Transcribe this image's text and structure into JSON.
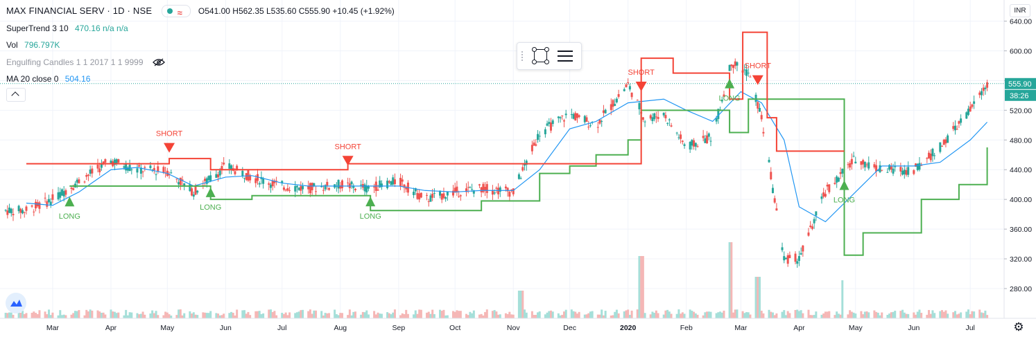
{
  "legend": {
    "title": "MAX FINANCIAL SERV · 1D · NSE",
    "ohlc": "O541.00  H562.35  L535.60  C555.90  +10.45 (+1.92%)",
    "indicators": [
      {
        "name": "SuperTrend 3 10",
        "value": "470.16  n/a  n/a",
        "color": "#26a69a"
      },
      {
        "name": "Vol",
        "value": "796.797K",
        "color": "#26a69a"
      },
      {
        "name": "Engulfing Candles 1 1 2017 1 1 9999",
        "value": "",
        "color": "#9598a1"
      },
      {
        "name": "MA 20 close 0",
        "value": "504.16",
        "color": "#2196f3"
      }
    ]
  },
  "price_scale": {
    "currency": "INR",
    "last_price_label": "555.90",
    "countdown_label": "38:26"
  },
  "colors": {
    "up": "#26a69a",
    "down": "#ef5350",
    "up_vol": "#a5dfd9",
    "down_vol": "#f5b7b6",
    "st_long": "#4caf50",
    "st_short": "#f44336",
    "ma": "#2196f3",
    "grid": "#f0f3fa",
    "text": "#131722"
  },
  "chart_data": {
    "type": "line",
    "title": "MAX FINANCIAL SERV · 1D · NSE",
    "ylim": [
      240,
      650
    ],
    "y_ticks": [
      640,
      600,
      560,
      520,
      480,
      440,
      400,
      360,
      320,
      280
    ],
    "x_ticks": [
      "Mar",
      "Apr",
      "May",
      "Jun",
      "Jul",
      "Aug",
      "Sep",
      "Oct",
      "Nov",
      "Dec",
      "2020",
      "Feb",
      "Mar",
      "Apr",
      "May",
      "Jun",
      "Jul"
    ],
    "grid": true,
    "series": [
      {
        "name": "Close",
        "x": [
          "2019-02-15",
          "2019-03-01",
          "2019-03-15",
          "2019-04-01",
          "2019-04-15",
          "2019-05-01",
          "2019-05-15",
          "2019-06-01",
          "2019-06-15",
          "2019-07-01",
          "2019-07-15",
          "2019-08-01",
          "2019-08-15",
          "2019-09-01",
          "2019-09-15",
          "2019-10-01",
          "2019-10-15",
          "2019-11-01",
          "2019-11-15",
          "2019-12-01",
          "2019-12-15",
          "2020-01-01",
          "2020-01-10",
          "2020-01-20",
          "2020-02-01",
          "2020-02-15",
          "2020-02-25",
          "2020-03-05",
          "2020-03-12",
          "2020-03-24",
          "2020-04-01",
          "2020-04-15",
          "2020-05-01",
          "2020-05-15",
          "2020-06-01",
          "2020-06-15",
          "2020-07-01",
          "2020-07-10"
        ],
        "values": [
          385,
          400,
          425,
          452,
          440,
          438,
          410,
          445,
          430,
          418,
          415,
          420,
          415,
          425,
          400,
          410,
          415,
          410,
          490,
          515,
          500,
          555,
          508,
          515,
          470,
          485,
          585,
          570,
          510,
          320,
          320,
          410,
          455,
          440,
          440,
          470,
          520,
          556
        ]
      },
      {
        "name": "MA 20 close 0",
        "x": [
          "2019-02-15",
          "2019-03-01",
          "2019-03-15",
          "2019-04-01",
          "2019-04-15",
          "2019-05-01",
          "2019-05-15",
          "2019-06-01",
          "2019-06-15",
          "2019-07-01",
          "2019-07-15",
          "2019-08-01",
          "2019-08-15",
          "2019-09-01",
          "2019-09-15",
          "2019-10-01",
          "2019-10-15",
          "2019-11-01",
          "2019-11-15",
          "2019-12-01",
          "2019-12-15",
          "2020-01-01",
          "2020-01-20",
          "2020-02-01",
          "2020-02-15",
          "2020-03-01",
          "2020-03-12",
          "2020-03-24",
          "2020-04-01",
          "2020-04-15",
          "2020-05-01",
          "2020-05-15",
          "2020-06-01",
          "2020-06-15",
          "2020-07-01",
          "2020-07-10"
        ],
        "values": [
          395,
          392,
          410,
          440,
          443,
          435,
          418,
          430,
          432,
          422,
          418,
          418,
          418,
          418,
          412,
          410,
          412,
          412,
          440,
          495,
          505,
          530,
          535,
          520,
          505,
          545,
          530,
          480,
          390,
          370,
          410,
          445,
          445,
          450,
          480,
          504
        ]
      },
      {
        "name": "SuperTrend long",
        "x": [
          "2019-03-10",
          "2019-05-09",
          "2019-05-24",
          "2019-06-15",
          "2019-08-17",
          "2019-10-15",
          "2019-11-01",
          "2019-11-15",
          "2019-12-01",
          "2019-12-15",
          "2020-01-01",
          "2020-01-08",
          "2020-02-24",
          "2020-03-05",
          "2020-04-25",
          "2020-05-05",
          "2020-06-05",
          "2020-06-25",
          "2020-07-10"
        ],
        "values": [
          418,
          418,
          400,
          405,
          385,
          398,
          398,
          435,
          445,
          460,
          480,
          520,
          490,
          535,
          325,
          355,
          400,
          420,
          470
        ]
      },
      {
        "name": "SuperTrend short",
        "x": [
          "2019-02-15",
          "2019-03-10",
          "2019-05-02",
          "2019-05-24",
          "2019-08-05",
          "2019-08-17",
          "2020-01-08",
          "2020-01-25",
          "2020-02-24",
          "2020-03-02",
          "2020-03-15",
          "2020-03-20",
          "2020-04-25"
        ],
        "values": [
          448,
          448,
          455,
          440,
          448,
          448,
          590,
          570,
          535,
          625,
          510,
          465,
          465
        ]
      },
      {
        "name": "Volume",
        "x": [
          "2019-11-05",
          "2020-01-08",
          "2020-02-24",
          "2020-03-10",
          "2020-04-25"
        ],
        "values": [
          40,
          90,
          110,
          60,
          55
        ]
      }
    ],
    "annotations": [
      {
        "text": "LONG",
        "x": "2019-03-10"
      },
      {
        "text": "SHORT",
        "x": "2019-05-02"
      },
      {
        "text": "LONG",
        "x": "2019-05-24"
      },
      {
        "text": "SHORT",
        "x": "2019-08-05"
      },
      {
        "text": "LONG",
        "x": "2019-08-17"
      },
      {
        "text": "SHORT",
        "x": "2020-01-08"
      },
      {
        "text": "LONG",
        "x": "2020-02-24"
      },
      {
        "text": "SHORT",
        "x": "2020-03-10"
      },
      {
        "text": "LONG",
        "x": "2020-04-25"
      }
    ]
  }
}
